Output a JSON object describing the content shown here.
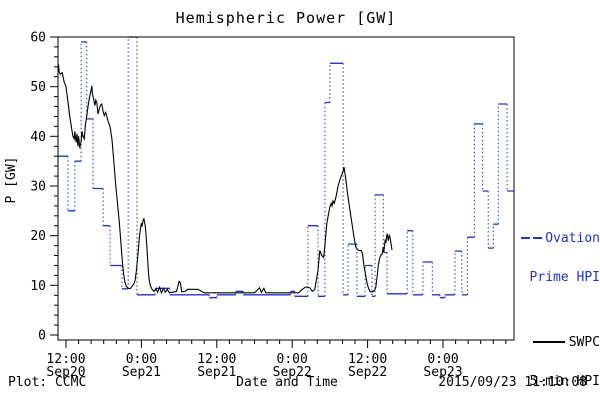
{
  "chart_data": {
    "type": "line",
    "title": "Hemispheric Power [GW]",
    "xlabel": "Date and Time",
    "ylabel": "P [GW]",
    "ylim": [
      0,
      60
    ],
    "y_major_ticks": [
      0,
      10,
      20,
      30,
      40,
      50,
      60
    ],
    "y_minor_step": 2,
    "x_hours_range": [
      -1.3,
      71.3
    ],
    "x_minor_step_hours": 2,
    "x_major_ticks": [
      {
        "t": 0,
        "time": "12:00",
        "date": "Sep20"
      },
      {
        "t": 12,
        "time": "0:00",
        "date": "Sep21"
      },
      {
        "t": 24,
        "time": "12:00",
        "date": "Sep21"
      },
      {
        "t": 36,
        "time": "0:00",
        "date": "Sep22"
      },
      {
        "t": 48,
        "time": "12:00",
        "date": "Sep22"
      },
      {
        "t": 60,
        "time": "0:00",
        "date": "Sep23"
      }
    ],
    "series": [
      {
        "name": "Ovation Prime HPI",
        "type": "step",
        "color": "#2233cc",
        "line_style": "solid horizontals with dotted vertical connectors",
        "steps_t0_t1_gw": [
          [
            -1.3,
            0.3,
            36
          ],
          [
            0.3,
            1.4,
            25
          ],
          [
            1.4,
            2.4,
            35
          ],
          [
            2.4,
            3.3,
            59
          ],
          [
            3.3,
            4.3,
            43.5
          ],
          [
            4.3,
            5.9,
            29.5
          ],
          [
            5.9,
            7.0,
            22
          ],
          [
            7.0,
            8.9,
            14
          ],
          [
            8.9,
            9.9,
            9.3
          ],
          [
            9.9,
            11.3,
            60
          ],
          [
            11.3,
            14.2,
            8.1
          ],
          [
            14.2,
            16.5,
            9.4
          ],
          [
            16.5,
            22.8,
            8.1
          ],
          [
            22.8,
            24.0,
            7.5
          ],
          [
            24.0,
            27.0,
            8.1
          ],
          [
            27.0,
            28.2,
            8.8
          ],
          [
            28.2,
            35.7,
            8.1
          ],
          [
            35.7,
            36.4,
            8.8
          ],
          [
            36.4,
            38.5,
            7.8
          ],
          [
            38.5,
            40.1,
            22
          ],
          [
            40.1,
            41.2,
            7.8
          ],
          [
            41.2,
            42.0,
            46.8
          ],
          [
            42.0,
            44.1,
            54.7
          ],
          [
            44.1,
            44.9,
            8.1
          ],
          [
            44.9,
            46.3,
            18.3
          ],
          [
            46.3,
            47.6,
            7.8
          ],
          [
            47.6,
            48.7,
            14
          ],
          [
            48.7,
            49.2,
            7.8
          ],
          [
            49.2,
            50.5,
            28.2
          ],
          [
            50.5,
            51.1,
            16.6
          ],
          [
            51.1,
            54.3,
            8.3
          ],
          [
            54.3,
            55.2,
            21
          ],
          [
            55.2,
            56.8,
            8.1
          ],
          [
            56.8,
            58.3,
            14.7
          ],
          [
            58.3,
            59.5,
            8.1
          ],
          [
            59.5,
            60.3,
            7.5
          ],
          [
            60.3,
            61.9,
            8.1
          ],
          [
            61.9,
            63.0,
            16.9
          ],
          [
            63.0,
            63.9,
            8.1
          ],
          [
            63.9,
            65.0,
            19.7
          ],
          [
            65.0,
            66.3,
            42.5
          ],
          [
            66.3,
            67.2,
            29
          ],
          [
            67.2,
            68.0,
            17.5
          ],
          [
            68.0,
            68.8,
            22.3
          ],
          [
            68.8,
            70.2,
            46.5
          ],
          [
            70.2,
            71.3,
            29
          ]
        ]
      },
      {
        "name": "SWPC 5-min HPI",
        "type": "line",
        "color": "#000000",
        "points_t_gw": [
          [
            -1.3,
            53.5
          ],
          [
            -1.2,
            54.5
          ],
          [
            -1.1,
            53
          ],
          [
            -0.9,
            52.5
          ],
          [
            -0.6,
            52.8
          ],
          [
            -0.3,
            51
          ],
          [
            0,
            50
          ],
          [
            0.3,
            47
          ],
          [
            0.6,
            44
          ],
          [
            0.9,
            41.5
          ],
          [
            1.1,
            40
          ],
          [
            1.3,
            39.5
          ],
          [
            1.4,
            41
          ],
          [
            1.6,
            38.8
          ],
          [
            1.75,
            40.5
          ],
          [
            1.9,
            38
          ],
          [
            2.0,
            40
          ],
          [
            2.2,
            37.6
          ],
          [
            2.4,
            39
          ],
          [
            2.55,
            41
          ],
          [
            2.7,
            40
          ],
          [
            2.9,
            39.5
          ],
          [
            3.1,
            42.5
          ],
          [
            3.3,
            44
          ],
          [
            3.5,
            46
          ],
          [
            3.7,
            47.5
          ],
          [
            3.85,
            48.5
          ],
          [
            4.0,
            49.3
          ],
          [
            4.1,
            50.2
          ],
          [
            4.2,
            48.5
          ],
          [
            4.4,
            47.5
          ],
          [
            4.6,
            46.2
          ],
          [
            4.75,
            47.3
          ],
          [
            4.9,
            46.8
          ],
          [
            5.1,
            44.5
          ],
          [
            5.3,
            45.5
          ],
          [
            5.5,
            46.3
          ],
          [
            5.7,
            46.5
          ],
          [
            5.9,
            45
          ],
          [
            6.1,
            44.2
          ],
          [
            6.3,
            44.8
          ],
          [
            6.5,
            44
          ],
          [
            6.7,
            43
          ],
          [
            7.0,
            42
          ],
          [
            7.3,
            39.5
          ],
          [
            7.6,
            35
          ],
          [
            7.9,
            30.5
          ],
          [
            8.2,
            26.5
          ],
          [
            8.5,
            22.5
          ],
          [
            8.8,
            17.5
          ],
          [
            9.0,
            14.5
          ],
          [
            9.2,
            12
          ],
          [
            9.4,
            10.5
          ],
          [
            9.6,
            9.8
          ],
          [
            9.9,
            9.4
          ],
          [
            10.2,
            9.3
          ],
          [
            10.5,
            9.8
          ],
          [
            10.8,
            10.3
          ],
          [
            11.0,
            11
          ],
          [
            11.2,
            13
          ],
          [
            11.5,
            17
          ],
          [
            11.7,
            20
          ],
          [
            11.85,
            21.5
          ],
          [
            12.0,
            22.5
          ],
          [
            12.1,
            21.8
          ],
          [
            12.25,
            23
          ],
          [
            12.4,
            23.4
          ],
          [
            12.6,
            22
          ],
          [
            12.75,
            20
          ],
          [
            12.9,
            17
          ],
          [
            13.05,
            14
          ],
          [
            13.2,
            11.5
          ],
          [
            13.4,
            10
          ],
          [
            13.7,
            9.2
          ],
          [
            14.0,
            8.8
          ],
          [
            14.3,
            9.3
          ],
          [
            14.6,
            8.6
          ],
          [
            14.9,
            9.6
          ],
          [
            15.2,
            8.5
          ],
          [
            15.5,
            9.4
          ],
          [
            15.8,
            8.6
          ],
          [
            16.1,
            9.2
          ],
          [
            16.4,
            8.6
          ],
          [
            17.0,
            8.6
          ],
          [
            17.6,
            8.8
          ],
          [
            18.0,
            10.8
          ],
          [
            18.2,
            10.5
          ],
          [
            18.4,
            8.7
          ],
          [
            19.0,
            8.8
          ],
          [
            19.3,
            9.2
          ],
          [
            20.0,
            9.2
          ],
          [
            21.0,
            9.2
          ],
          [
            22.0,
            8.5
          ],
          [
            23.0,
            8.5
          ],
          [
            24.0,
            8.5
          ],
          [
            25.0,
            8.5
          ],
          [
            26.0,
            8.5
          ],
          [
            27.0,
            8.5
          ],
          [
            28.0,
            8.5
          ],
          [
            29.0,
            8.5
          ],
          [
            30.0,
            8.5
          ],
          [
            30.8,
            9.5
          ],
          [
            31.1,
            8.6
          ],
          [
            31.5,
            9.4
          ],
          [
            31.8,
            8.5
          ],
          [
            33.0,
            8.5
          ],
          [
            34.0,
            8.5
          ],
          [
            35.0,
            8.5
          ],
          [
            36.0,
            8.5
          ],
          [
            37.0,
            8.5
          ],
          [
            37.7,
            9.3
          ],
          [
            38.2,
            9.7
          ],
          [
            38.8,
            9.5
          ],
          [
            39.2,
            8.8
          ],
          [
            39.6,
            9.2
          ],
          [
            40.1,
            13
          ],
          [
            40.4,
            17
          ],
          [
            40.7,
            16
          ],
          [
            41.0,
            15.6
          ],
          [
            41.2,
            18
          ],
          [
            41.5,
            22.4
          ],
          [
            41.8,
            24.5
          ],
          [
            42.0,
            25.8
          ],
          [
            42.2,
            26.5
          ],
          [
            42.35,
            26
          ],
          [
            42.5,
            27
          ],
          [
            42.7,
            26.5
          ],
          [
            43.0,
            28
          ],
          [
            43.3,
            30
          ],
          [
            43.6,
            31.3
          ],
          [
            43.9,
            32.3
          ],
          [
            44.1,
            33
          ],
          [
            44.24,
            33.8
          ],
          [
            44.4,
            32.5
          ],
          [
            44.56,
            31
          ],
          [
            44.8,
            28.5
          ],
          [
            45.0,
            26.9
          ],
          [
            45.2,
            25
          ],
          [
            45.5,
            22.5
          ],
          [
            45.8,
            20
          ],
          [
            46.1,
            17.8
          ],
          [
            46.4,
            17.2
          ],
          [
            46.7,
            17
          ],
          [
            47.0,
            17
          ],
          [
            47.2,
            16.2
          ],
          [
            47.4,
            14.2
          ],
          [
            47.7,
            12
          ],
          [
            47.9,
            10.5
          ],
          [
            48.1,
            9.6
          ],
          [
            48.4,
            8.7
          ],
          [
            48.8,
            8.7
          ],
          [
            49.1,
            9
          ],
          [
            49.3,
            9.6
          ],
          [
            49.5,
            11.6
          ],
          [
            49.7,
            14
          ],
          [
            49.9,
            15.3
          ],
          [
            50.1,
            16.1
          ],
          [
            50.3,
            16.2
          ],
          [
            50.5,
            17.7
          ],
          [
            50.6,
            16.8
          ],
          [
            50.8,
            19.2
          ],
          [
            50.9,
            18.5
          ],
          [
            51.0,
            19.4
          ],
          [
            51.1,
            20.4
          ],
          [
            51.3,
            19
          ],
          [
            51.45,
            20.2
          ],
          [
            51.6,
            19.5
          ],
          [
            51.88,
            17.1
          ]
        ]
      }
    ],
    "legend": {
      "position": "right-outside",
      "ovation": {
        "line1": "Ovation",
        "line2": "Prime HPI",
        "color": "#2233cc"
      },
      "swpc": {
        "line1": "SWPC",
        "line2": "5-min HPI",
        "color": "#000000"
      }
    },
    "footer": {
      "credit": "Plot: CCMC",
      "timestamp": "2015/09/23 11:10:08"
    },
    "grid": false
  }
}
